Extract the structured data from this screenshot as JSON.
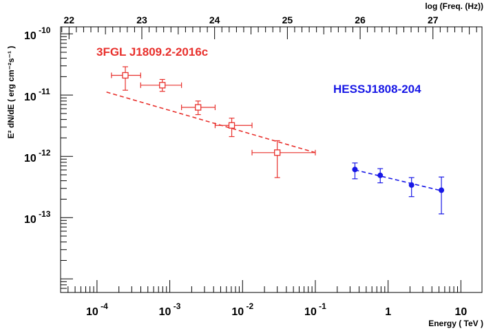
{
  "chart_data": {
    "type": "scatter",
    "xlabel": "Energy ( TeV )",
    "ylabel": "E² dN/dE ( erg cm⁻²s⁻¹ )",
    "top_axis_label": "log (Freq. (Hz))",
    "x_scale": "log",
    "y_scale": "log",
    "xlim": [
      3.16e-05,
      19.5
    ],
    "ylim": [
      6e-15,
      1.3e-10
    ],
    "grid": false,
    "x_tick_labels": [
      {
        "base": "10",
        "exp": "-4",
        "value": 0.0001
      },
      {
        "base": "10",
        "exp": "-3",
        "value": 0.001
      },
      {
        "base": "10",
        "exp": "-2",
        "value": 0.01
      },
      {
        "base": "10",
        "exp": "-1",
        "value": 0.1
      },
      {
        "base": "1",
        "exp": "",
        "value": 1
      },
      {
        "base": "10",
        "exp": "",
        "value": 10
      }
    ],
    "y_tick_labels": [
      {
        "base": "10",
        "exp": "-10",
        "value": 1e-10
      },
      {
        "base": "10",
        "exp": "-11",
        "value": 1e-11
      },
      {
        "base": "10",
        "exp": "-12",
        "value": 1e-12
      },
      {
        "base": "10",
        "exp": "-13",
        "value": 1e-13
      }
    ],
    "top_tick_labels": [
      "22",
      "23",
      "24",
      "25",
      "26",
      "27"
    ],
    "top_tick_values": [
      22,
      23,
      24,
      25,
      26,
      27
    ],
    "series": [
      {
        "name": "3FGL J1809.2-2016c",
        "color": "#e8302c",
        "marker": "open-square",
        "points": [
          {
            "x": 0.000245,
            "y": 2.1e-11,
            "xlo": 0.000158,
            "xhi": 0.000398,
            "ylo": 1.2e-11,
            "yhi": 2.9e-11
          },
          {
            "x": 0.00079,
            "y": 1.45e-11,
            "xlo": 0.000398,
            "xhi": 0.00145,
            "ylo": 1.15e-11,
            "yhi": 1.8e-11
          },
          {
            "x": 0.00245,
            "y": 6.3e-12,
            "xlo": 0.00145,
            "xhi": 0.0042,
            "ylo": 4.8e-12,
            "yhi": 8e-12
          },
          {
            "x": 0.0071,
            "y": 3.2e-12,
            "xlo": 0.0042,
            "xhi": 0.0135,
            "ylo": 2.1e-12,
            "yhi": 4.2e-12
          },
          {
            "x": 0.03,
            "y": 1.15e-12,
            "xlo": 0.0135,
            "xhi": 0.1,
            "ylo": 4.5e-13,
            "yhi": 1.8e-12
          }
        ],
        "fit_line": {
          "x": [
            0.000135,
            0.1
          ],
          "y": [
            1.12e-11,
            1.15e-12
          ],
          "style": "dashed"
        }
      },
      {
        "name": "HESSJ1808-204",
        "color": "#1717e6",
        "marker": "filled-circle",
        "points": [
          {
            "x": 0.35,
            "y": 6.1e-13,
            "ylo": 4.3e-13,
            "yhi": 7.8e-13
          },
          {
            "x": 0.78,
            "y": 4.9e-13,
            "ylo": 3.7e-13,
            "yhi": 6.3e-13
          },
          {
            "x": 2.1,
            "y": 3.4e-13,
            "ylo": 2.2e-13,
            "yhi": 4.5e-13
          },
          {
            "x": 5.4,
            "y": 2.8e-13,
            "ylo": 1.15e-13,
            "yhi": 4.6e-13
          }
        ],
        "fit_line": {
          "x": [
            0.35,
            5.4
          ],
          "y": [
            6e-13,
            2.75e-13
          ],
          "style": "dashed"
        }
      }
    ]
  }
}
